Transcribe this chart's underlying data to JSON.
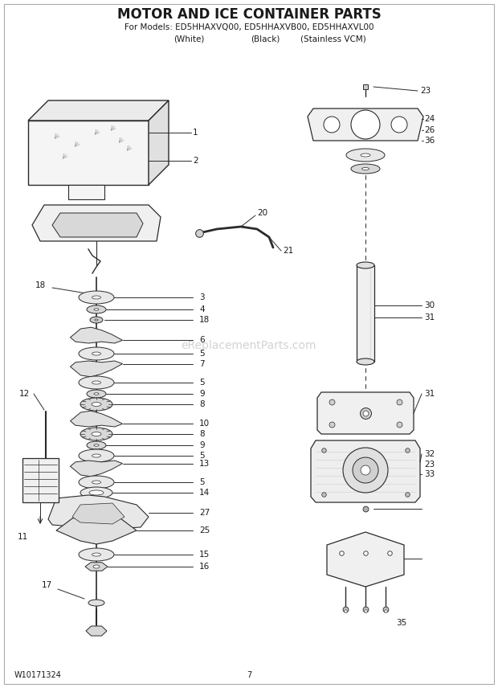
{
  "title": "MOTOR AND ICE CONTAINER PARTS",
  "subtitle1": "For Models: ED5HHAXVQ00, ED5HHAXVB00, ED5HHAXVL00",
  "subtitle2_white": "(White)",
  "subtitle2_black": "(Black)",
  "subtitle2_stainless": "(Stainless VCM)",
  "watermark": "eReplacementParts.com",
  "part_number": "W10171324",
  "page_number": "7",
  "bg": "#ffffff",
  "lc": "#2a2a2a",
  "tc": "#1a1a1a",
  "wc": "#cccccc"
}
